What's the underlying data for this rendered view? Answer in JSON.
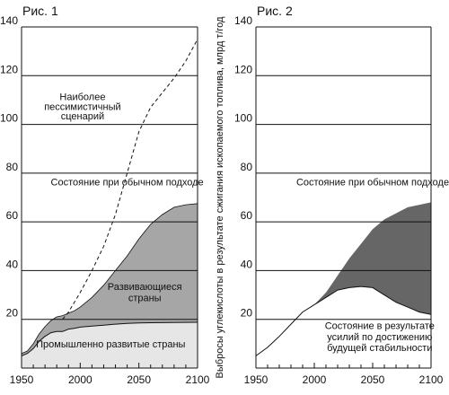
{
  "y_axis_label": "Выбросы углекислоты в результате сжигания ископаемого топлива, млрд т/год",
  "colors": {
    "developed": "#e6e6e6",
    "developing": "#a6a6a6",
    "gap": "#666666",
    "line": "#111111",
    "grid": "#111111"
  },
  "chart_data": [
    {
      "type": "area",
      "title": "Рис. 1",
      "xlim": [
        1950,
        2100
      ],
      "ylim": [
        0,
        140
      ],
      "x_ticks": [
        1950,
        2000,
        2050,
        2100
      ],
      "y_ticks": [
        20,
        40,
        60,
        80,
        100,
        120,
        140
      ],
      "grid": "horizontal",
      "series": [
        {
          "name": "Промышленно развитые страны",
          "role": "developed",
          "x": [
            1950,
            1955,
            1960,
            1965,
            1970,
            1975,
            1980,
            1985,
            1990,
            1995,
            2000,
            2010,
            2020,
            2030,
            2040,
            2050,
            2060,
            2080,
            2100
          ],
          "y": [
            5,
            6,
            8,
            11,
            13,
            14.5,
            15,
            15,
            16,
            16.3,
            16.8,
            17.2,
            17.6,
            18,
            18.3,
            18.5,
            18.6,
            18.7,
            18.8
          ]
        },
        {
          "name": "Развивающиеся страны",
          "role": "developing",
          "x": [
            1950,
            1955,
            1960,
            1965,
            1970,
            1975,
            1980,
            1985,
            1990,
            1995,
            2000,
            2010,
            2020,
            2030,
            2040,
            2050,
            2060,
            2070,
            2080,
            2090,
            2100
          ],
          "y": [
            6,
            7,
            10,
            14,
            17,
            19.5,
            21,
            21.5,
            22.5,
            23.5,
            25,
            29,
            34,
            40,
            46,
            53,
            59,
            63,
            66,
            67,
            67.5
          ]
        },
        {
          "name": "Наиболее пессимистичный сценарий",
          "role": "pessimistic",
          "style": "dashed",
          "x": [
            1985,
            1990,
            2000,
            2010,
            2020,
            2030,
            2040,
            2050,
            2060,
            2070,
            2080,
            2090,
            2100
          ],
          "y": [
            20,
            23,
            31,
            40,
            50,
            63,
            80,
            97,
            107,
            113,
            119,
            126,
            135
          ]
        }
      ],
      "annotations": [
        {
          "text": "Наиболее",
          "x": 2002,
          "y": 110
        },
        {
          "text": "пессимистичный",
          "x": 2002,
          "y": 106
        },
        {
          "text": "сценарий",
          "x": 2002,
          "y": 102
        },
        {
          "text": "Состояние при обычном подходе",
          "x": 2040,
          "y": 75
        },
        {
          "text": "Развивающиеся",
          "x": 2055,
          "y": 32
        },
        {
          "text": "страны",
          "x": 2055,
          "y": 27.5
        },
        {
          "text": "Промышленно развитые страны",
          "x": 2026,
          "y": 8.5
        }
      ]
    },
    {
      "type": "area",
      "title": "Рис. 2",
      "xlim": [
        1950,
        2100
      ],
      "ylim": [
        0,
        140
      ],
      "x_ticks": [
        1950,
        2000,
        2050,
        2100
      ],
      "y_ticks": [
        20,
        40,
        60,
        80,
        100,
        120,
        140
      ],
      "grid": "horizontal",
      "series": [
        {
          "name": "Состояние при обычном подходе",
          "role": "business_as_usual",
          "x": [
            1990,
            2000,
            2010,
            2020,
            2030,
            2040,
            2050,
            2060,
            2070,
            2080,
            2090,
            2100
          ],
          "y": [
            23,
            26,
            31,
            38,
            45,
            51,
            57,
            61,
            63.5,
            66,
            67,
            68
          ]
        },
        {
          "name": "Состояние в результате усилий по достижению будущей стабильности",
          "role": "stable",
          "x": [
            1950,
            1960,
            1970,
            1980,
            1990,
            2000,
            2010,
            2020,
            2030,
            2040,
            2050,
            2060,
            2070,
            2080,
            2090,
            2100
          ],
          "y": [
            5,
            8.5,
            13,
            18,
            23,
            26,
            29,
            32,
            33,
            33.5,
            33,
            30,
            27,
            25,
            23,
            22
          ]
        }
      ],
      "annotations": [
        {
          "text": "Состояние при обычном подходе",
          "x": 2050,
          "y": 75
        },
        {
          "text": "Состояние в результате",
          "x": 2056,
          "y": 16
        },
        {
          "text": "усилий по достижению",
          "x": 2056,
          "y": 11.5
        },
        {
          "text": "будущей стабильности",
          "x": 2056,
          "y": 7
        }
      ]
    }
  ]
}
